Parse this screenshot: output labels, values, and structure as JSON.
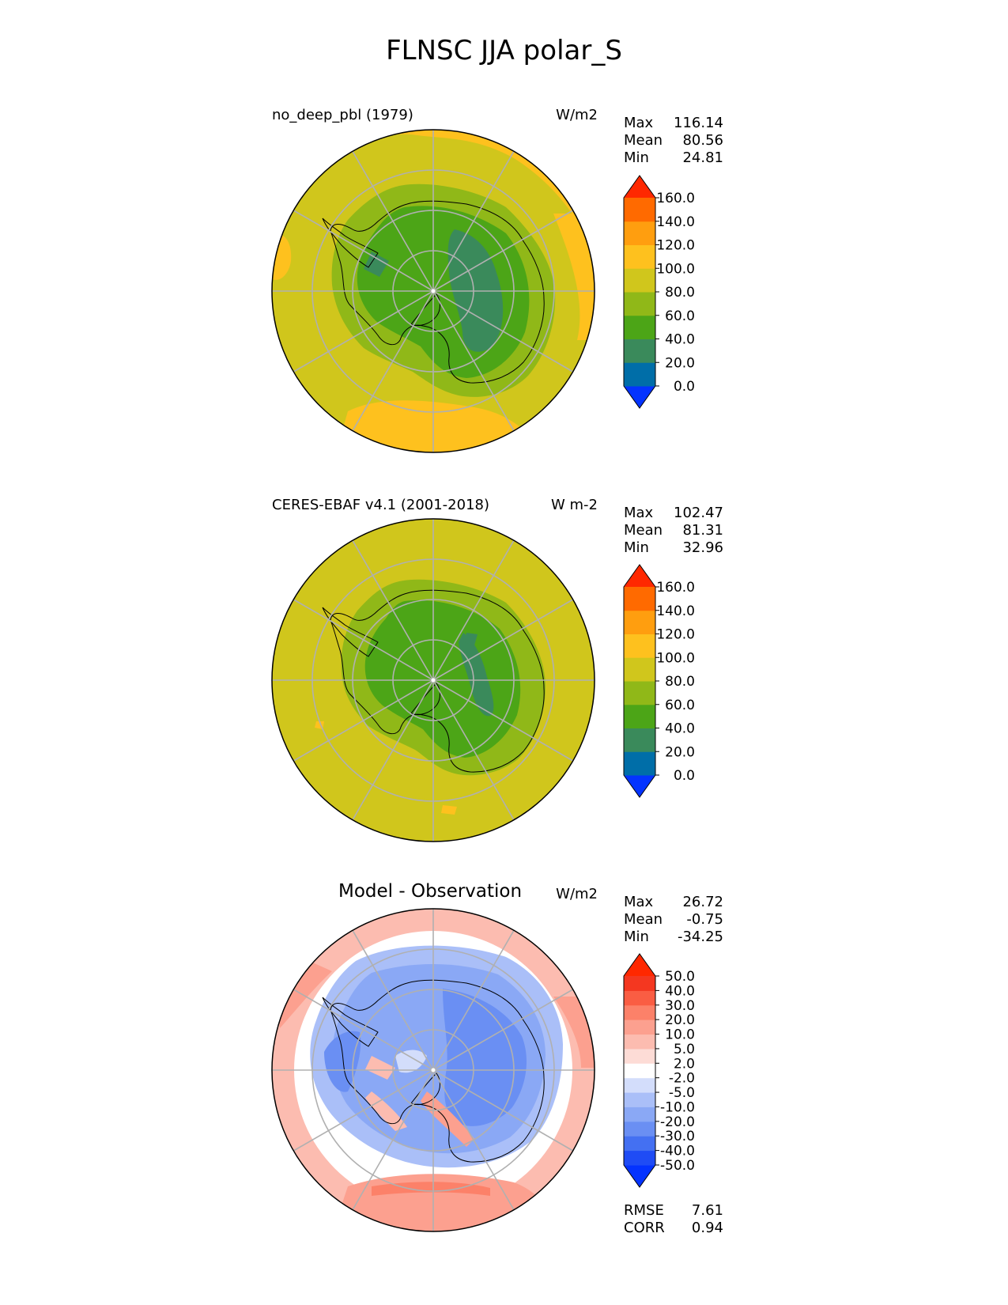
{
  "suptitle": "FLNSC JJA polar_S",
  "panels": [
    {
      "title": "no_deep_pbl (1979)",
      "units": "W/m2",
      "stats": [
        {
          "label": "Max",
          "value": "116.14"
        },
        {
          "label": "Mean",
          "value": "80.56"
        },
        {
          "label": "Min",
          "value": "24.81"
        }
      ],
      "colorbar": {
        "ticks": [
          "0.0",
          "20.0",
          "40.0",
          "60.0",
          "80.0",
          "100.0",
          "120.0",
          "140.0",
          "160.0"
        ],
        "colors": [
          "#0433ff",
          "#006ea8",
          "#3a8a5b",
          "#4ca517",
          "#90b818",
          "#d0c61c",
          "#fec11e",
          "#ff9e0f",
          "#ff6a00",
          "#ff2800"
        ]
      }
    },
    {
      "title": "CERES-EBAF v4.1 (2001-2018)",
      "units": "W m-2",
      "stats": [
        {
          "label": "Max",
          "value": "102.47"
        },
        {
          "label": "Mean",
          "value": "81.31"
        },
        {
          "label": "Min",
          "value": "32.96"
        }
      ],
      "colorbar": {
        "ticks": [
          "0.0",
          "20.0",
          "40.0",
          "60.0",
          "80.0",
          "100.0",
          "120.0",
          "140.0",
          "160.0"
        ],
        "colors": [
          "#0433ff",
          "#006ea8",
          "#3a8a5b",
          "#4ca517",
          "#90b818",
          "#d0c61c",
          "#fec11e",
          "#ff9e0f",
          "#ff6a00",
          "#ff2800"
        ]
      }
    },
    {
      "title": "Model - Observation",
      "units": "W/m2",
      "stats": [
        {
          "label": "Max",
          "value": "26.72"
        },
        {
          "label": "Mean",
          "value": "-0.75"
        },
        {
          "label": "Min",
          "value": "-34.25"
        }
      ],
      "metrics": [
        {
          "label": "RMSE",
          "value": "7.61"
        },
        {
          "label": "CORR",
          "value": "0.94"
        }
      ],
      "colorbar": {
        "ticks": [
          "-50.0",
          "-40.0",
          "-30.0",
          "-20.0",
          "-10.0",
          "-5.0",
          "-2.0",
          "2.0",
          "5.0",
          "10.0",
          "20.0",
          "30.0",
          "40.0",
          "50.0"
        ],
        "colors": [
          "#0433ff",
          "#1f4cf5",
          "#4470f2",
          "#6a8ff3",
          "#8aa8f5",
          "#aabff8",
          "#d3ddfb",
          "#ffffff",
          "#fddcd6",
          "#fcbcb0",
          "#fca08f",
          "#fc8169",
          "#fa5d43",
          "#f43720",
          "#ff2800"
        ]
      }
    }
  ],
  "chart_data": [
    {
      "type": "heatmap",
      "projection": "south-polar-stereographic",
      "title": "no_deep_pbl (1979)",
      "units": "W/m2",
      "levels": [
        0,
        20,
        40,
        60,
        80,
        100,
        120,
        140,
        160
      ],
      "summary": {
        "max": 116.14,
        "mean": 80.56,
        "min": 24.81
      },
      "grid": true
    },
    {
      "type": "heatmap",
      "projection": "south-polar-stereographic",
      "title": "CERES-EBAF v4.1 (2001-2018)",
      "units": "W m-2",
      "levels": [
        0,
        20,
        40,
        60,
        80,
        100,
        120,
        140,
        160
      ],
      "summary": {
        "max": 102.47,
        "mean": 81.31,
        "min": 32.96
      },
      "grid": true
    },
    {
      "type": "heatmap",
      "projection": "south-polar-stereographic",
      "title": "Model - Observation",
      "units": "W/m2",
      "levels": [
        -50,
        -40,
        -30,
        -20,
        -10,
        -5,
        -2,
        2,
        5,
        10,
        20,
        30,
        40,
        50
      ],
      "summary": {
        "max": 26.72,
        "mean": -0.75,
        "min": -34.25,
        "rmse": 7.61,
        "corr": 0.94
      },
      "grid": true
    }
  ]
}
